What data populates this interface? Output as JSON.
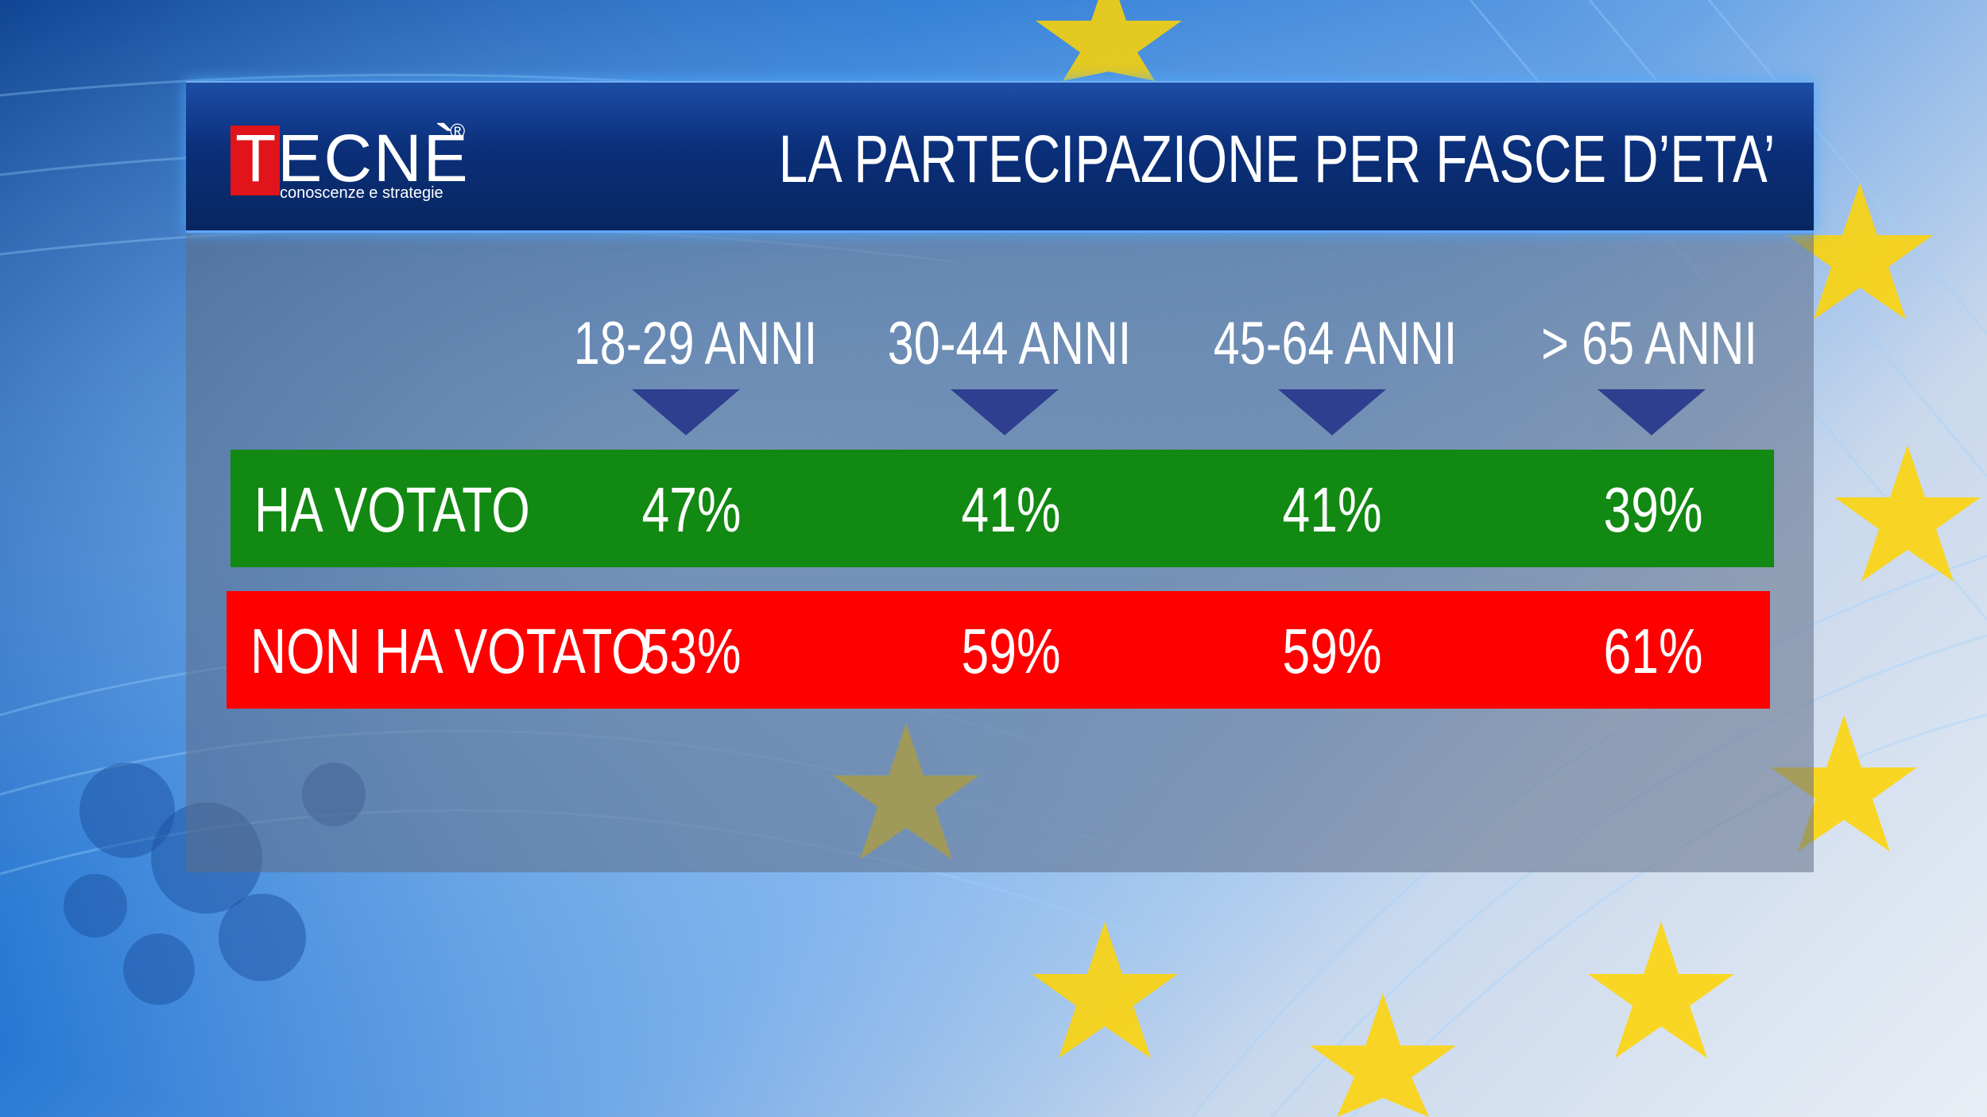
{
  "header": {
    "logo_text": "TECNÈ",
    "logo_registered": "®",
    "logo_tagline": "conoscenze e strategie",
    "title": "LA PARTECIPAZIONE PER FASCE D’ETA’"
  },
  "colors": {
    "ha_votato_row": "#128912",
    "non_ha_votato_row": "#ff0000",
    "header_blue": "#0b2f7a",
    "logo_red": "#e0141a",
    "arrow": "#2f3f8f"
  },
  "chart_data": {
    "type": "table",
    "title": "LA PARTECIPAZIONE PER FASCE D’ETA’",
    "columns": [
      "18-29 ANNI",
      "30-44 ANNI",
      "45-64 ANNI",
      "> 65 ANNI"
    ],
    "rows": [
      {
        "label": "HA VOTATO",
        "values": [
          "47%",
          "41%",
          "41%",
          "39%"
        ]
      },
      {
        "label": "NON HA VOTATO",
        "values": [
          "53%",
          "59%",
          "59%",
          "61%"
        ]
      }
    ]
  }
}
